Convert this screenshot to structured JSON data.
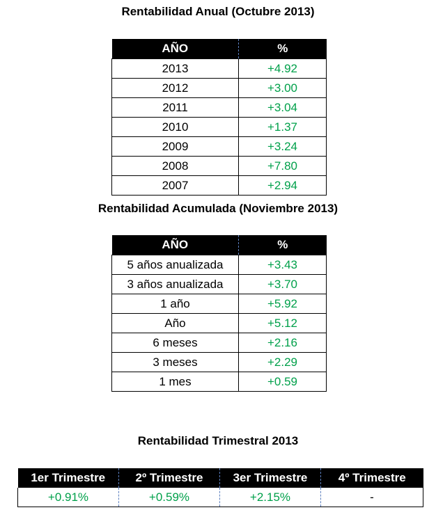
{
  "annual": {
    "title": "Rentabilidad Anual (Octubre 2013)",
    "header": [
      "AÑO",
      "%"
    ],
    "rows": [
      [
        "2013",
        "+4.92"
      ],
      [
        "2012",
        "+3.00"
      ],
      [
        "2011",
        "+3.04"
      ],
      [
        "2010",
        "+1.37"
      ],
      [
        "2009",
        "+3.24"
      ],
      [
        "2008",
        "+7.80"
      ],
      [
        "2007",
        "+2.94"
      ]
    ]
  },
  "accumulated": {
    "title": "Rentabilidad Acumulada (Noviembre 2013)",
    "header": [
      "AÑO",
      "%"
    ],
    "rows": [
      [
        "5 años anualizada",
        "+3.43"
      ],
      [
        "3 años anualizada",
        "+3.70"
      ],
      [
        "1 año",
        "+5.92"
      ],
      [
        "Año",
        "+5.12"
      ],
      [
        "6 meses",
        "+2.16"
      ],
      [
        "3 meses",
        "+2.29"
      ],
      [
        "1 mes",
        "+0.59"
      ]
    ]
  },
  "quarterly": {
    "title": "Rentabilidad Trimestral 2013",
    "header": [
      "1er Trimestre",
      "2º Trimestre",
      "3er Trimestre",
      "4º Trimestre"
    ],
    "rows": [
      [
        "+0.91%",
        "+0.59%",
        "+2.15%",
        "-"
      ]
    ]
  }
}
